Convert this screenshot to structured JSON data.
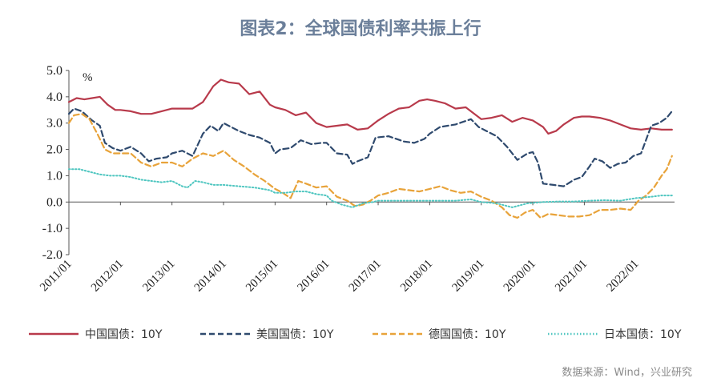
{
  "title": "图表2：全球国债利率共振上行",
  "source": "数据来源：Wind，兴业研究",
  "chart_data": {
    "type": "line",
    "unit_label": "%",
    "ylim": [
      -2.0,
      5.0
    ],
    "y_ticks": [
      "5.0",
      "4.0",
      "3.0",
      "2.0",
      "1.0",
      "0.0",
      "-1.0",
      "-2.0"
    ],
    "y_tick_values": [
      5,
      4,
      3,
      2,
      1,
      0,
      -1,
      -2
    ],
    "xlim": [
      2011.0,
      2022.75
    ],
    "x_ticks": [
      "2011/01",
      "2012/01",
      "2013/01",
      "2014/01",
      "2015/01",
      "2016/01",
      "2017/01",
      "2018/01",
      "2019/01",
      "2020/01",
      "2021/01",
      "2022/01"
    ],
    "x_tick_values": [
      2011,
      2012,
      2013,
      2014,
      2015,
      2016,
      2017,
      2018,
      2019,
      2020,
      2021,
      2022
    ],
    "series": [
      {
        "name": "中国国债：10Y",
        "color": "#b83a4b",
        "style": "solid",
        "x": [
          2011.0,
          2011.15,
          2011.3,
          2011.45,
          2011.6,
          2011.75,
          2011.9,
          2012.0,
          2012.2,
          2012.4,
          2012.6,
          2012.8,
          2013.0,
          2013.2,
          2013.4,
          2013.6,
          2013.8,
          2013.95,
          2014.1,
          2014.3,
          2014.5,
          2014.7,
          2014.9,
          2015.0,
          2015.2,
          2015.4,
          2015.6,
          2015.8,
          2016.0,
          2016.2,
          2016.4,
          2016.6,
          2016.8,
          2017.0,
          2017.2,
          2017.4,
          2017.6,
          2017.8,
          2017.95,
          2018.1,
          2018.3,
          2018.5,
          2018.7,
          2018.9,
          2019.0,
          2019.2,
          2019.4,
          2019.6,
          2019.8,
          2020.0,
          2020.2,
          2020.3,
          2020.45,
          2020.6,
          2020.8,
          2020.95,
          2021.1,
          2021.3,
          2021.5,
          2021.7,
          2021.9,
          2022.1,
          2022.3,
          2022.5,
          2022.7
        ],
        "values": [
          3.8,
          3.95,
          3.9,
          3.95,
          4.0,
          3.7,
          3.5,
          3.5,
          3.45,
          3.35,
          3.35,
          3.45,
          3.55,
          3.55,
          3.55,
          3.8,
          4.4,
          4.65,
          4.55,
          4.5,
          4.1,
          4.2,
          3.7,
          3.6,
          3.5,
          3.3,
          3.4,
          3.0,
          2.85,
          2.9,
          2.95,
          2.75,
          2.8,
          3.1,
          3.35,
          3.55,
          3.6,
          3.85,
          3.9,
          3.85,
          3.75,
          3.55,
          3.6,
          3.3,
          3.15,
          3.2,
          3.3,
          3.05,
          3.2,
          3.1,
          2.85,
          2.6,
          2.7,
          2.95,
          3.2,
          3.25,
          3.25,
          3.2,
          3.1,
          2.95,
          2.8,
          2.75,
          2.8,
          2.75,
          2.75
        ]
      },
      {
        "name": "美国国债：10Y",
        "color": "#2f4a6e",
        "style": "dash",
        "x": [
          2011.0,
          2011.1,
          2011.25,
          2011.45,
          2011.6,
          2011.7,
          2011.85,
          2012.0,
          2012.2,
          2012.4,
          2012.55,
          2012.7,
          2012.9,
          2013.0,
          2013.2,
          2013.4,
          2013.6,
          2013.75,
          2013.9,
          2014.0,
          2014.3,
          2014.5,
          2014.7,
          2014.9,
          2015.0,
          2015.1,
          2015.3,
          2015.5,
          2015.7,
          2015.9,
          2016.0,
          2016.2,
          2016.4,
          2016.5,
          2016.6,
          2016.8,
          2016.95,
          2017.2,
          2017.5,
          2017.7,
          2017.9,
          2018.0,
          2018.2,
          2018.5,
          2018.8,
          2018.95,
          2019.1,
          2019.3,
          2019.5,
          2019.7,
          2019.9,
          2020.0,
          2020.1,
          2020.2,
          2020.4,
          2020.6,
          2020.8,
          2020.95,
          2021.1,
          2021.2,
          2021.35,
          2021.5,
          2021.65,
          2021.8,
          2021.95,
          2022.1,
          2022.3,
          2022.45,
          2022.6,
          2022.7
        ],
        "values": [
          3.35,
          3.55,
          3.45,
          3.1,
          2.9,
          2.25,
          2.05,
          1.95,
          2.1,
          1.85,
          1.55,
          1.65,
          1.7,
          1.85,
          1.95,
          1.75,
          2.6,
          2.9,
          2.7,
          3.0,
          2.7,
          2.55,
          2.45,
          2.25,
          1.85,
          2.0,
          2.05,
          2.35,
          2.2,
          2.25,
          2.25,
          1.85,
          1.8,
          1.45,
          1.55,
          1.7,
          2.45,
          2.5,
          2.3,
          2.25,
          2.4,
          2.6,
          2.85,
          2.95,
          3.15,
          2.85,
          2.7,
          2.5,
          2.1,
          1.6,
          1.85,
          1.9,
          1.5,
          0.7,
          0.65,
          0.6,
          0.85,
          0.95,
          1.35,
          1.65,
          1.55,
          1.3,
          1.45,
          1.5,
          1.75,
          1.85,
          2.9,
          3.0,
          3.2,
          3.45
        ]
      },
      {
        "name": "德国国债：10Y",
        "color": "#e8a33a",
        "style": "dash",
        "x": [
          2011.0,
          2011.1,
          2011.25,
          2011.4,
          2011.55,
          2011.7,
          2011.85,
          2012.0,
          2012.2,
          2012.4,
          2012.6,
          2012.8,
          2013.0,
          2013.2,
          2013.4,
          2013.6,
          2013.8,
          2014.0,
          2014.2,
          2014.4,
          2014.6,
          2014.8,
          2015.0,
          2015.15,
          2015.3,
          2015.45,
          2015.6,
          2015.8,
          2016.0,
          2016.2,
          2016.4,
          2016.55,
          2016.7,
          2016.85,
          2017.0,
          2017.2,
          2017.4,
          2017.6,
          2017.8,
          2018.0,
          2018.2,
          2018.4,
          2018.6,
          2018.8,
          2019.0,
          2019.2,
          2019.4,
          2019.55,
          2019.7,
          2019.85,
          2020.0,
          2020.15,
          2020.3,
          2020.5,
          2020.7,
          2020.9,
          2021.1,
          2021.3,
          2021.5,
          2021.7,
          2021.9,
          2022.05,
          2022.2,
          2022.35,
          2022.5,
          2022.6,
          2022.7
        ],
        "values": [
          3.0,
          3.3,
          3.35,
          3.15,
          2.6,
          2.0,
          1.85,
          1.85,
          1.85,
          1.5,
          1.35,
          1.5,
          1.5,
          1.35,
          1.65,
          1.85,
          1.75,
          1.95,
          1.6,
          1.35,
          1.05,
          0.8,
          0.5,
          0.35,
          0.15,
          0.8,
          0.7,
          0.55,
          0.6,
          0.2,
          0.05,
          -0.15,
          -0.1,
          0.05,
          0.25,
          0.35,
          0.5,
          0.45,
          0.4,
          0.5,
          0.6,
          0.45,
          0.35,
          0.4,
          0.2,
          0.05,
          -0.2,
          -0.5,
          -0.6,
          -0.4,
          -0.3,
          -0.6,
          -0.45,
          -0.5,
          -0.55,
          -0.55,
          -0.5,
          -0.3,
          -0.3,
          -0.25,
          -0.3,
          0.05,
          0.25,
          0.55,
          1.0,
          1.25,
          1.75
        ]
      },
      {
        "name": "日本国债：10Y",
        "color": "#4fc6c0",
        "style": "dot",
        "x": [
          2011.0,
          2011.2,
          2011.4,
          2011.6,
          2011.8,
          2012.0,
          2012.2,
          2012.4,
          2012.6,
          2012.8,
          2013.0,
          2013.2,
          2013.3,
          2013.45,
          2013.6,
          2013.8,
          2014.0,
          2014.3,
          2014.6,
          2014.9,
          2015.0,
          2015.2,
          2015.4,
          2015.6,
          2015.8,
          2016.0,
          2016.1,
          2016.3,
          2016.5,
          2016.7,
          2016.9,
          2017.0,
          2017.3,
          2017.6,
          2017.9,
          2018.2,
          2018.5,
          2018.8,
          2019.0,
          2019.3,
          2019.6,
          2019.9,
          2020.2,
          2020.5,
          2020.8,
          2021.1,
          2021.4,
          2021.7,
          2022.0,
          2022.3,
          2022.5,
          2022.7
        ],
        "values": [
          1.25,
          1.25,
          1.15,
          1.05,
          1.0,
          1.0,
          0.95,
          0.85,
          0.8,
          0.75,
          0.8,
          0.6,
          0.55,
          0.8,
          0.75,
          0.65,
          0.65,
          0.6,
          0.55,
          0.45,
          0.35,
          0.35,
          0.4,
          0.4,
          0.3,
          0.25,
          0.05,
          -0.1,
          -0.2,
          -0.05,
          0.0,
          0.05,
          0.05,
          0.05,
          0.05,
          0.05,
          0.05,
          0.1,
          0.0,
          -0.05,
          -0.2,
          -0.05,
          0.0,
          0.02,
          0.02,
          0.05,
          0.07,
          0.05,
          0.15,
          0.2,
          0.25,
          0.25
        ]
      }
    ]
  }
}
